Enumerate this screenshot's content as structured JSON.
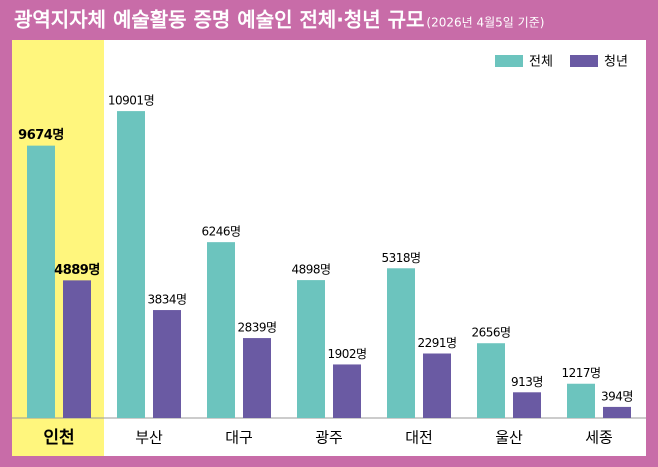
{
  "chart_data": {
    "type": "bar",
    "title": "광역지자체 예술활동 증명 예술인 전체·청년 규모",
    "subtitle": "(2026년 4월5일 기준)",
    "categories": [
      "인천",
      "부산",
      "대구",
      "광주",
      "대전",
      "울산",
      "세종"
    ],
    "series": [
      {
        "name": "전체",
        "color": "#6cc4be",
        "values": [
          9674,
          10901,
          6246,
          4898,
          5318,
          2656,
          1217
        ],
        "value_labels": [
          "9674명",
          "10901명",
          "6246명",
          "4898명",
          "5318명",
          "2656명",
          "1217명"
        ]
      },
      {
        "name": "청년",
        "color": "#6a5aa3",
        "values": [
          4889,
          3834,
          2839,
          1902,
          2291,
          913,
          394
        ],
        "value_labels": [
          "4889명",
          "3834명",
          "2839명",
          "1902명",
          "2291명",
          "913명",
          "394명"
        ]
      }
    ],
    "ylim": [
      0,
      13000
    ],
    "legend": "upper right"
  }
}
